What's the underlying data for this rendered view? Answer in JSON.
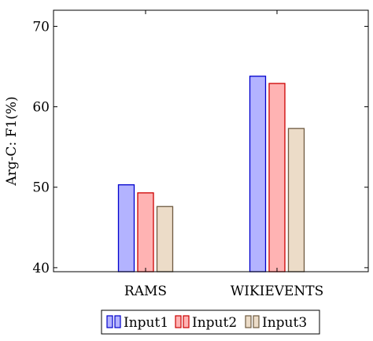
{
  "chart_data": {
    "type": "bar",
    "title": "",
    "xlabel": "",
    "ylabel": "Arg-C: F1(%)",
    "categories": [
      "RAMS",
      "WIKIEVENTS"
    ],
    "ylim": [
      39.5,
      72
    ],
    "yticks": [
      40,
      50,
      60,
      70
    ],
    "grid": false,
    "legend_position": "bottom",
    "series": [
      {
        "name": "Input1",
        "values": [
          50.3,
          63.8
        ],
        "fill": "#b3b3ff",
        "stroke": "#0000cc"
      },
      {
        "name": "Input2",
        "values": [
          49.3,
          62.9
        ],
        "fill": "#ffb3b3",
        "stroke": "#cc0000"
      },
      {
        "name": "Input3",
        "values": [
          47.6,
          57.3
        ],
        "fill": "#ecdcc8",
        "stroke": "#6e5a40"
      }
    ]
  }
}
